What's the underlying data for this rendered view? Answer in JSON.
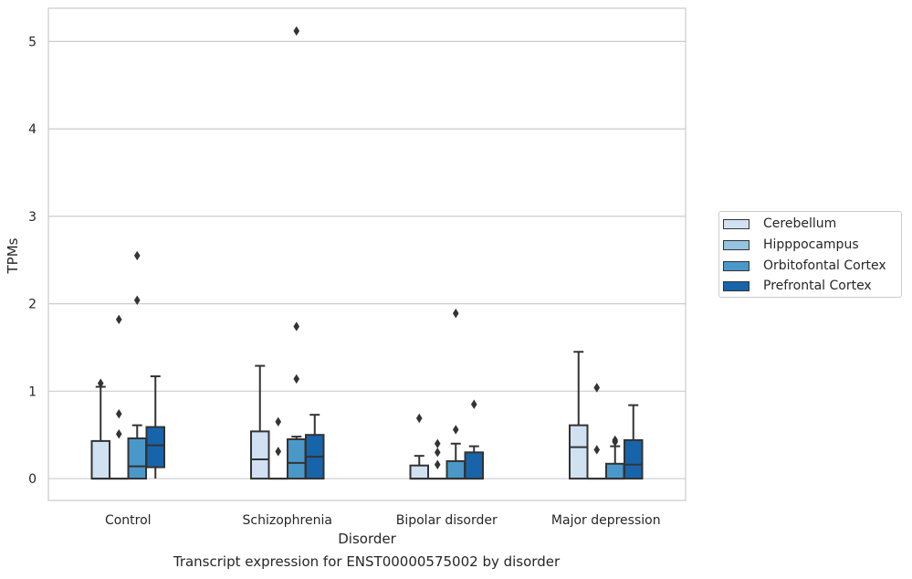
{
  "chart_data": {
    "type": "box",
    "xlabel": "Disorder",
    "ylabel": "TPMs",
    "caption": "Transcript expression for ENST00000575002 by disorder",
    "categories": [
      "Control",
      "Schizophrenia",
      "Bipolar disorder",
      "Major depression"
    ],
    "ylim": [
      -0.25,
      5.38
    ],
    "yticks": [
      0,
      1,
      2,
      3,
      4,
      5
    ],
    "grid": true,
    "legend_position": "right",
    "series": [
      {
        "name": "Cerebellum",
        "color": "#d0e1f2",
        "boxes": [
          {
            "q1": 0,
            "median": 0,
            "q3": 0.43,
            "whisker_low": 0,
            "whisker_high": 1.05,
            "outliers": [
              1.09
            ]
          },
          {
            "q1": 0,
            "median": 0.22,
            "q3": 0.54,
            "whisker_low": 0,
            "whisker_high": 1.29,
            "outliers": []
          },
          {
            "q1": 0,
            "median": 0,
            "q3": 0.15,
            "whisker_low": 0,
            "whisker_high": 0.26,
            "outliers": [
              0.69
            ]
          },
          {
            "q1": 0,
            "median": 0.36,
            "q3": 0.61,
            "whisker_low": 0,
            "whisker_high": 1.45,
            "outliers": []
          }
        ]
      },
      {
        "name": "Hipppocampus",
        "color": "#94c4df",
        "boxes": [
          {
            "q1": 0,
            "median": 0,
            "q3": 0,
            "whisker_low": 0,
            "whisker_high": 0,
            "outliers": [
              0.51,
              0.74,
              1.82
            ]
          },
          {
            "q1": 0,
            "median": 0,
            "q3": 0,
            "whisker_low": 0,
            "whisker_high": 0,
            "outliers": [
              0.31,
              0.65
            ]
          },
          {
            "q1": 0,
            "median": 0,
            "q3": 0,
            "whisker_low": 0,
            "whisker_high": 0,
            "outliers": [
              0.16,
              0.3,
              0.4
            ]
          },
          {
            "q1": 0,
            "median": 0,
            "q3": 0,
            "whisker_low": 0,
            "whisker_high": 0,
            "outliers": [
              0.33,
              1.04
            ]
          }
        ]
      },
      {
        "name": "Orbitofontal Cortex",
        "color": "#4a98c9",
        "boxes": [
          {
            "q1": 0,
            "median": 0.14,
            "q3": 0.46,
            "whisker_low": 0,
            "whisker_high": 0.61,
            "outliers": [
              2.04,
              2.55
            ]
          },
          {
            "q1": 0,
            "median": 0.18,
            "q3": 0.45,
            "whisker_low": 0,
            "whisker_high": 0.48,
            "outliers": [
              1.14,
              1.74,
              5.12
            ]
          },
          {
            "q1": 0,
            "median": 0,
            "q3": 0.2,
            "whisker_low": 0,
            "whisker_high": 0.4,
            "outliers": [
              0.56,
              1.89
            ]
          },
          {
            "q1": 0,
            "median": 0,
            "q3": 0.17,
            "whisker_low": 0,
            "whisker_high": 0.37,
            "outliers": [
              0.42,
              0.44
            ]
          }
        ]
      },
      {
        "name": "Prefrontal Cortex",
        "color": "#1764ab",
        "boxes": [
          {
            "q1": 0.13,
            "median": 0.38,
            "q3": 0.59,
            "whisker_low": 0,
            "whisker_high": 1.17,
            "outliers": []
          },
          {
            "q1": 0,
            "median": 0.25,
            "q3": 0.5,
            "whisker_low": 0,
            "whisker_high": 0.73,
            "outliers": []
          },
          {
            "q1": 0,
            "median": 0,
            "q3": 0.3,
            "whisker_low": 0,
            "whisker_high": 0.37,
            "outliers": [
              0.85
            ]
          },
          {
            "q1": 0,
            "median": 0.16,
            "q3": 0.44,
            "whisker_low": 0,
            "whisker_high": 0.84,
            "outliers": []
          }
        ]
      }
    ]
  }
}
